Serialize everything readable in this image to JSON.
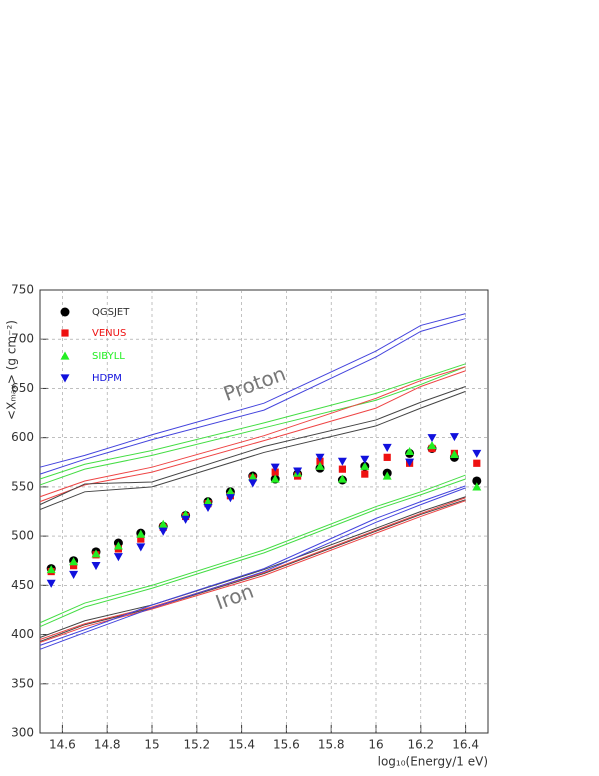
{
  "chart_data": {
    "type": "scatter",
    "ylabel": "<Xₘₐₓ> (g cm⁻²)",
    "xlabel": "log₁₀(Energy/1 eV)",
    "annotations": [
      "Proton",
      "Iron"
    ],
    "xlim": [
      14.5,
      16.5
    ],
    "ylim": [
      300,
      750
    ],
    "xticks": [
      14.6,
      14.8,
      15,
      15.2,
      15.4,
      15.6,
      15.8,
      16,
      16.2,
      16.4
    ],
    "yticks": [
      300,
      350,
      400,
      450,
      500,
      550,
      600,
      650,
      700,
      750
    ],
    "grid": true,
    "x": [
      14.55,
      14.65,
      14.75,
      14.85,
      14.95,
      15.05,
      15.15,
      15.25,
      15.35,
      15.45,
      15.55,
      15.65,
      15.75,
      15.85,
      15.95,
      16.05,
      16.15,
      16.25,
      16.35,
      16.45
    ],
    "series": [
      {
        "name": "QGSJET",
        "color": "#000000",
        "marker": "circle",
        "values": [
          467,
          475,
          484,
          493,
          503,
          510,
          521,
          535,
          545,
          561,
          558,
          563,
          569,
          557,
          571,
          564,
          584,
          589,
          580,
          556
        ]
      },
      {
        "name": "VENUS",
        "color": "#ee1111",
        "marker": "square",
        "values": [
          464,
          470,
          481,
          487,
          497,
          509,
          520,
          533,
          541,
          559,
          565,
          561,
          576,
          568,
          563,
          580,
          574,
          589,
          584,
          574
        ]
      },
      {
        "name": "SIBYLL",
        "color": "#22ee22",
        "marker": "triangle-up",
        "values": [
          466,
          474,
          482,
          490,
          502,
          512,
          522,
          535,
          545,
          560,
          558,
          564,
          571,
          558,
          571,
          561,
          586,
          592,
          583,
          550
        ]
      },
      {
        "name": "HDPM",
        "color": "#1111dd",
        "marker": "triangle-down",
        "values": [
          452,
          461,
          470,
          479,
          489,
          505,
          517,
          529,
          539,
          554,
          570,
          566,
          580,
          576,
          578,
          590,
          575,
          600,
          601,
          584
        ]
      }
    ],
    "line_x": [
      14.5,
      14.7,
      15,
      15.5,
      16,
      16.2,
      16.4
    ],
    "lines": [
      {
        "color": "#4444dd",
        "values": [
          570,
          582,
          603,
          635,
          688,
          714,
          726
        ]
      },
      {
        "color": "#4444dd",
        "values": [
          563,
          578,
          598,
          628,
          682,
          708,
          721
        ]
      },
      {
        "color": "#44dd44",
        "values": [
          558,
          573,
          587,
          615,
          645,
          660,
          675
        ]
      },
      {
        "color": "#44dd44",
        "values": [
          552,
          568,
          582,
          610,
          638,
          654,
          672
        ]
      },
      {
        "color": "#ee4444",
        "values": [
          540,
          556,
          570,
          602,
          640,
          658,
          672
        ]
      },
      {
        "color": "#ee4444",
        "values": [
          535,
          552,
          565,
          597,
          630,
          652,
          668
        ]
      },
      {
        "color": "#444444",
        "values": [
          532,
          553,
          555,
          591,
          618,
          636,
          652
        ]
      },
      {
        "color": "#444444",
        "values": [
          527,
          545,
          550,
          585,
          612,
          630,
          647
        ]
      },
      {
        "color": "#44dd44",
        "values": [
          412,
          432,
          450,
          486,
          530,
          545,
          562
        ]
      },
      {
        "color": "#44dd44",
        "values": [
          408,
          428,
          447,
          483,
          527,
          542,
          558
        ]
      },
      {
        "color": "#444444",
        "values": [
          397,
          414,
          430,
          466,
          508,
          525,
          540
        ]
      },
      {
        "color": "#444444",
        "values": [
          393,
          410,
          427,
          462,
          505,
          522,
          537
        ]
      },
      {
        "color": "#ee4444",
        "values": [
          395,
          411,
          428,
          463,
          506,
          523,
          539
        ]
      },
      {
        "color": "#ee4444",
        "values": [
          392,
          408,
          426,
          460,
          503,
          520,
          536
        ]
      },
      {
        "color": "#4444dd",
        "values": [
          389,
          405,
          430,
          467,
          518,
          535,
          551
        ]
      },
      {
        "color": "#4444dd",
        "values": [
          385,
          402,
          427,
          464,
          514,
          532,
          549
        ]
      }
    ]
  }
}
